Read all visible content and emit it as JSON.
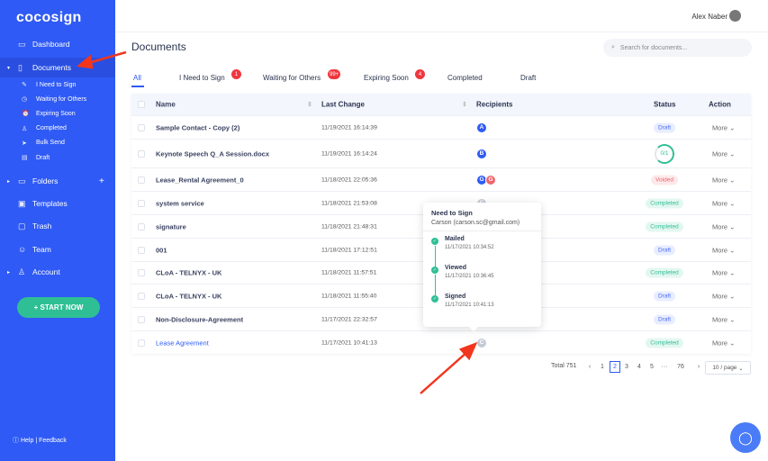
{
  "app": {
    "logo": "cocosign",
    "accent": "#2f5af5",
    "green": "#2fbf95"
  },
  "sidebar": {
    "items": [
      {
        "label": "Dashboard",
        "icon": "monitor-icon"
      },
      {
        "label": "Documents",
        "icon": "file-icon"
      },
      {
        "label": "Folders",
        "icon": "folder-icon"
      },
      {
        "label": "Templates",
        "icon": "template-icon"
      },
      {
        "label": "Trash",
        "icon": "trash-icon"
      },
      {
        "label": "Team",
        "icon": "team-icon"
      },
      {
        "label": "Account",
        "icon": "user-icon"
      }
    ],
    "sub_items": [
      {
        "label": "I Need to Sign",
        "icon": "sign-icon"
      },
      {
        "label": "Waiting for Others",
        "icon": "clock-icon"
      },
      {
        "label": "Expiring Soon",
        "icon": "alarm-icon"
      },
      {
        "label": "Completed",
        "icon": "user-check-icon"
      },
      {
        "label": "Bulk Send",
        "icon": "send-icon"
      },
      {
        "label": "Draft",
        "icon": "draft-icon"
      }
    ],
    "folders_add": "+",
    "start_now": "+ START NOW",
    "help": "Help",
    "divider": "|",
    "feedback": "Feedback"
  },
  "header": {
    "user_name": "Alex Naber"
  },
  "main": {
    "title": "Documents",
    "search_placeholder": "Search for documents...",
    "tabs": [
      {
        "label": "All",
        "badge": ""
      },
      {
        "label": "I Need to Sign",
        "badge": "1"
      },
      {
        "label": "Waiting for Others",
        "badge": "99+"
      },
      {
        "label": "Expiring Soon",
        "badge": "4"
      },
      {
        "label": "Completed",
        "badge": ""
      },
      {
        "label": "Draft",
        "badge": ""
      }
    ],
    "columns": {
      "name": "Name",
      "last_change": "Last Change",
      "recipients": "Recipients",
      "status": "Status",
      "action": "Action"
    },
    "rows": [
      {
        "name": "Sample Contact - Copy (2)",
        "date": "11/19/2021 16:14:39",
        "recipients": [
          {
            "i": "A",
            "c": "#2f5af5"
          }
        ],
        "status": "Draft"
      },
      {
        "name": "Keynote Speech Q_A Session.docx",
        "date": "11/19/2021 16:14:24",
        "recipients": [
          {
            "i": "B",
            "c": "#2f5af5"
          }
        ],
        "status": "0/1",
        "progress": 0.75
      },
      {
        "name": "Lease_Rental Agreement_0",
        "date": "11/18/2021 22:05:36",
        "recipients": [
          {
            "i": "G",
            "c": "#2f5af5"
          },
          {
            "i": "G",
            "c": "#f0656d"
          }
        ],
        "status": "Voided"
      },
      {
        "name": "system service",
        "date": "11/18/2021 21:53:08",
        "recipients": [
          {
            "i": "C",
            "c": "#c5cad6"
          }
        ],
        "status": "Completed"
      },
      {
        "name": "signature",
        "date": "11/18/2021 21:48:31",
        "recipients": [],
        "status": "Completed"
      },
      {
        "name": "001",
        "date": "11/18/2021 17:12:51",
        "recipients": [],
        "status": "Draft"
      },
      {
        "name": "CLoA - TELNYX - UK",
        "date": "11/18/2021 11:57:51",
        "recipients": [],
        "status": "Completed"
      },
      {
        "name": "CLoA - TELNYX - UK",
        "date": "11/18/2021 11:55:40",
        "recipients": [],
        "status": "Draft"
      },
      {
        "name": "Non-Disclosure-Agreement",
        "date": "11/17/2021 22:32:57",
        "recipients": [],
        "status": "Draft"
      },
      {
        "name": "Lease Agreement",
        "date": "11/17/2021 10:41:13",
        "recipients": [
          {
            "i": "C",
            "c": "#c5cad6"
          }
        ],
        "status": "Completed",
        "link": true
      }
    ],
    "more_label": "More"
  },
  "tooltip": {
    "title": "Need to Sign",
    "signer": "Carson (carson.sc@gmail.com)",
    "steps": [
      {
        "label": "Mailed",
        "date": "11/17/2021 10:34:52"
      },
      {
        "label": "Viewed",
        "date": "11/17/2021 10:36:45"
      },
      {
        "label": "Signed",
        "date": "11/17/2021 10:41:13"
      }
    ]
  },
  "pagination": {
    "total": "Total 751",
    "pages": [
      "1",
      "2",
      "3",
      "4",
      "5",
      "···",
      "76"
    ],
    "current": "2",
    "per_page": "10 / page"
  }
}
